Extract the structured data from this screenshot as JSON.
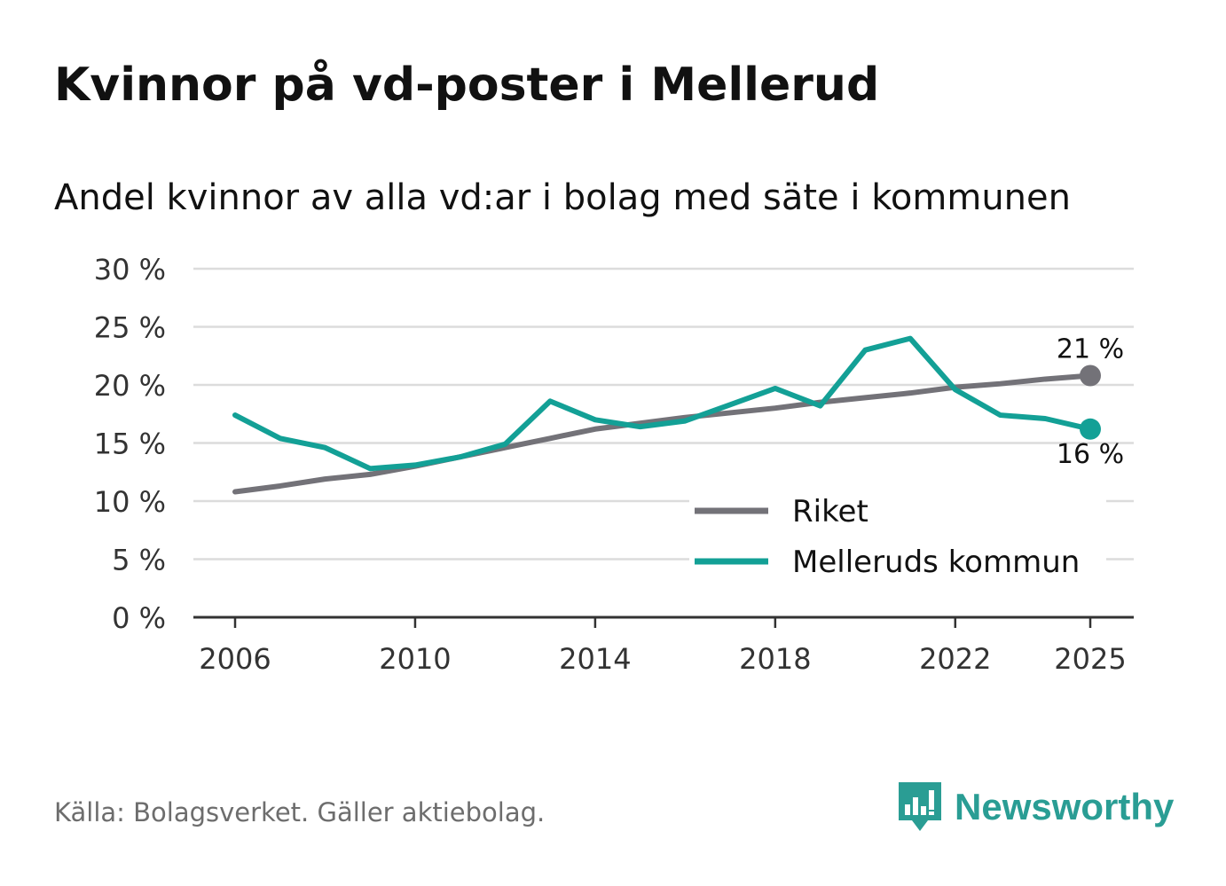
{
  "title": "Kvinnor på vd-poster i Mellerud",
  "subtitle": "Andel kvinnor av alla vd:ar i bolag med säte i kommunen",
  "source": "Källa: Bolagsverket. Gäller aktiebolag.",
  "brand": {
    "name": "Newsworthy",
    "color": "#2a9d94",
    "icon": "bar-chart-speech-bubble-icon"
  },
  "colors": {
    "riket": "#737278",
    "kommun": "#13a096",
    "grid": "#dcdcdc",
    "axis": "#333333",
    "text": "#333333"
  },
  "chart_data": {
    "type": "line",
    "x": [
      2006,
      2007,
      2008,
      2009,
      2010,
      2011,
      2012,
      2013,
      2014,
      2015,
      2016,
      2017,
      2018,
      2019,
      2020,
      2021,
      2022,
      2023,
      2024,
      2025
    ],
    "xticks": [
      2006,
      2010,
      2014,
      2018,
      2022,
      2025
    ],
    "xtick_labels": [
      "2006",
      "2010",
      "2014",
      "2018",
      "2022",
      "2025"
    ],
    "ylim": [
      0,
      30
    ],
    "yticks": [
      0,
      5,
      10,
      15,
      20,
      25,
      30
    ],
    "ytick_labels": [
      "0 %",
      "5 %",
      "10 %",
      "15 %",
      "20 %",
      "25 %",
      "30 %"
    ],
    "grid": true,
    "legend_position": "bottom-right",
    "series": [
      {
        "name": "Riket",
        "color": "#737278",
        "values": [
          10.8,
          11.3,
          11.9,
          12.3,
          13.0,
          13.8,
          14.6,
          15.4,
          16.2,
          16.7,
          17.2,
          17.6,
          18.0,
          18.5,
          18.9,
          19.3,
          19.8,
          20.1,
          20.5,
          20.8
        ],
        "end_label": "21 %"
      },
      {
        "name": "Melleruds kommun",
        "color": "#13a096",
        "values": [
          17.4,
          15.4,
          14.6,
          12.8,
          13.1,
          13.8,
          14.9,
          18.6,
          17.0,
          16.4,
          16.9,
          18.3,
          19.7,
          18.2,
          23.0,
          24.0,
          19.6,
          17.4,
          17.1,
          16.2
        ],
        "end_label": "16 %"
      }
    ]
  }
}
